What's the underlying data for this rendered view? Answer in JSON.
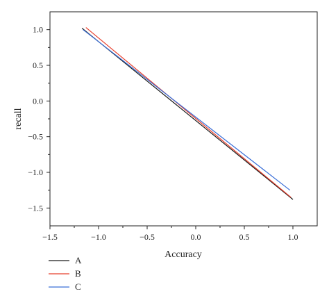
{
  "chart_data": {
    "type": "line",
    "title": "",
    "xlabel": "Accuracy",
    "ylabel": "recall",
    "xlim": [
      -1.5,
      1.25
    ],
    "ylim": [
      -1.75,
      1.25
    ],
    "xticks": [
      -1.5,
      -1.0,
      -0.5,
      0.0,
      0.5,
      1.0
    ],
    "xtick_labels": [
      "−1.5",
      "−1.0",
      "−0.5",
      "0.0",
      "0.5",
      "1.0"
    ],
    "yticks": [
      -1.5,
      -1.0,
      -0.5,
      0.0,
      0.5,
      1.0
    ],
    "ytick_labels": [
      "−1.5",
      "−1.0",
      "−0.5",
      "0.0",
      "0.5",
      "1.0"
    ],
    "grid": false,
    "legend_position": "below-left",
    "series": [
      {
        "name": "A",
        "color": "#1a1a1a",
        "x": [
          -1.17,
          1.0
        ],
        "y": [
          1.02,
          -1.38
        ]
      },
      {
        "name": "B",
        "color": "#e8402e",
        "x": [
          -1.13,
          0.98
        ],
        "y": [
          1.03,
          -1.35
        ]
      },
      {
        "name": "C",
        "color": "#3a6fd8",
        "x": [
          -1.16,
          0.97
        ],
        "y": [
          1.0,
          -1.25
        ]
      }
    ]
  }
}
